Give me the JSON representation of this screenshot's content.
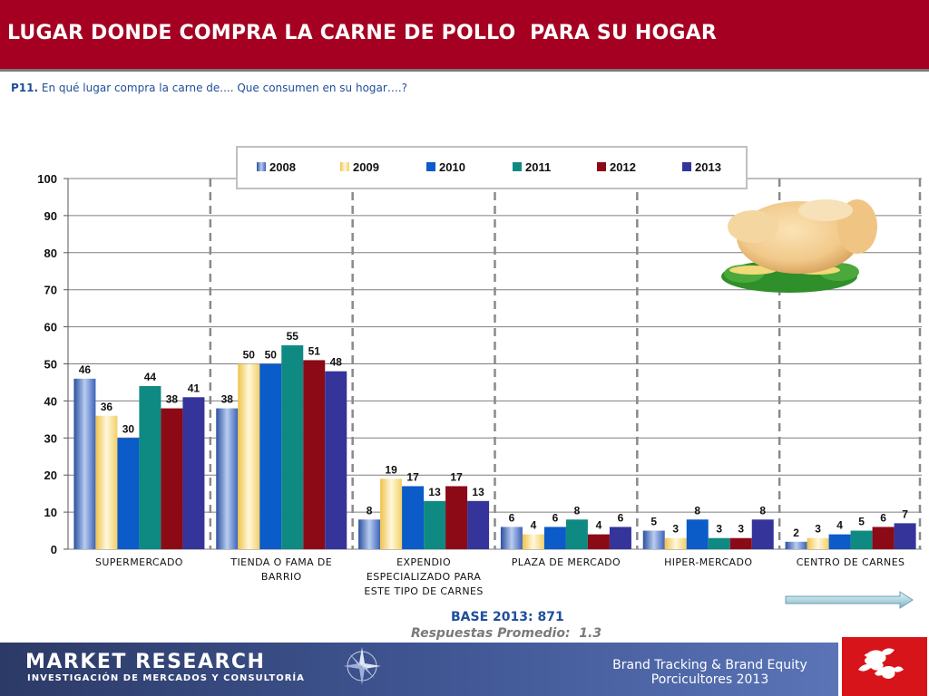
{
  "header": {
    "title": "LUGAR DONDE COMPRA LA CARNE DE POLLO  PARA SU HOGAR"
  },
  "question": {
    "code": "P11.",
    "text": " En qué lugar compra la carne de.... Que consumen en su hogar….?"
  },
  "chart_data": {
    "type": "bar",
    "categories": [
      [
        "SUPERMERCADO"
      ],
      [
        "TIENDA O FAMA DE",
        "BARRIO"
      ],
      [
        "EXPENDIO",
        "ESPECIALIZADO PARA",
        "ESTE TIPO DE CARNES"
      ],
      [
        "PLAZA DE MERCADO"
      ],
      [
        "HIPER-MERCADO"
      ],
      [
        "CENTRO DE CARNES"
      ]
    ],
    "series": [
      {
        "name": "2008",
        "color": "#5b7fc7",
        "values": [
          46,
          38,
          8,
          6,
          5,
          2
        ]
      },
      {
        "name": "2009",
        "color": "#f5d77a",
        "values": [
          36,
          50,
          19,
          4,
          3,
          3
        ]
      },
      {
        "name": "2010",
        "color": "#0b5bc8",
        "values": [
          30,
          50,
          17,
          6,
          8,
          4
        ]
      },
      {
        "name": "2011",
        "color": "#0e8a82",
        "values": [
          44,
          55,
          13,
          8,
          3,
          5
        ]
      },
      {
        "name": "2012",
        "color": "#8b0a16",
        "values": [
          38,
          51,
          17,
          4,
          3,
          6
        ]
      },
      {
        "name": "2013",
        "color": "#35349a",
        "values": [
          41,
          48,
          13,
          6,
          8,
          7
        ]
      }
    ],
    "yticks": [
      0,
      10,
      20,
      30,
      40,
      50,
      60,
      70,
      80,
      90,
      100
    ],
    "ylim": [
      0,
      100
    ],
    "legend_position": "top",
    "grid": true
  },
  "base_text": "BASE 2013: 871",
  "avg_text": "Respuestas Promedio:  1.3",
  "footer": {
    "logo_main": "MARKET RESEARCH",
    "logo_sub": "INVESTIGACIÓN DE MERCADOS Y CONSULTORÍA",
    "right_line1": "Brand Tracking & Brand Equity",
    "right_line2": "Porcicultores 2013"
  },
  "icons": [
    "chicken-image",
    "next-arrow-icon",
    "compass-icon",
    "brand-logo-icon"
  ]
}
